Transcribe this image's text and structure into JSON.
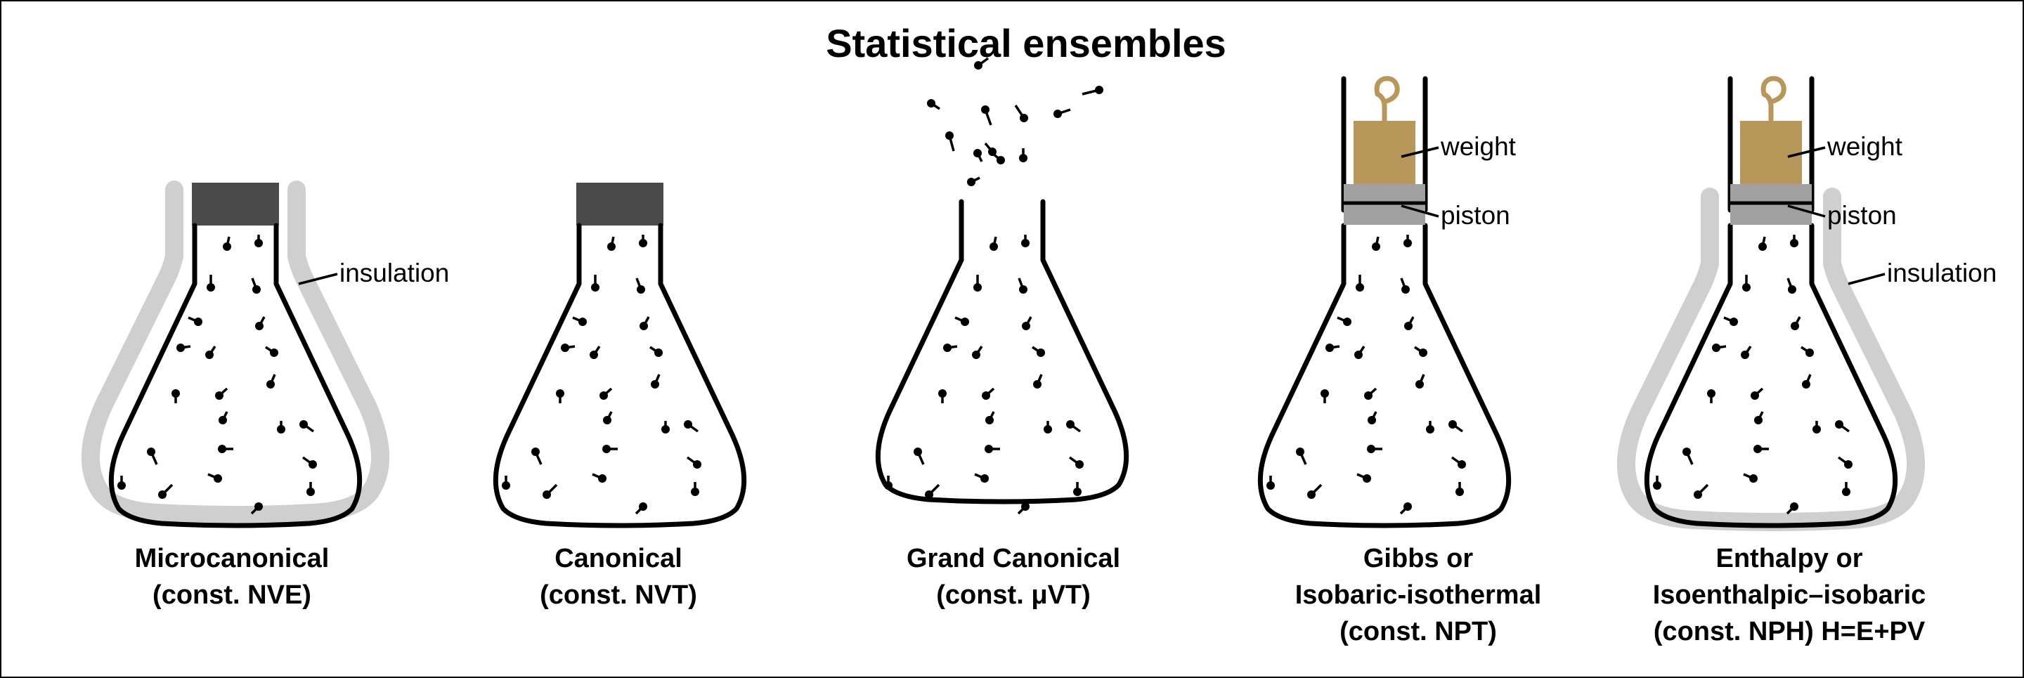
{
  "title": "Statistical ensembles",
  "labels": {
    "insulation": "insulation",
    "weight": "weight",
    "piston": "piston"
  },
  "ensembles": [
    {
      "line1": "Microcanonical",
      "line2": "(const. NVE)",
      "line3": ""
    },
    {
      "line1": "Canonical",
      "line2": "(const. NVT)",
      "line3": ""
    },
    {
      "line1": "Grand Canonical",
      "line2": "(const. μVT)",
      "line3": ""
    },
    {
      "line1": "Gibbs or",
      "line2": "Isobaric-isothermal",
      "line3": "(const. NPT)"
    },
    {
      "line1": "Enthalpy or",
      "line2": "Isoenthalpic–isobaric",
      "line3": "(const. NPH) H=E+PV"
    }
  ],
  "colors": {
    "stopper": "#4a4a4a",
    "insulation": "#cfcfcf",
    "weight": "#b8975a",
    "piston": "#a0a0a0"
  }
}
